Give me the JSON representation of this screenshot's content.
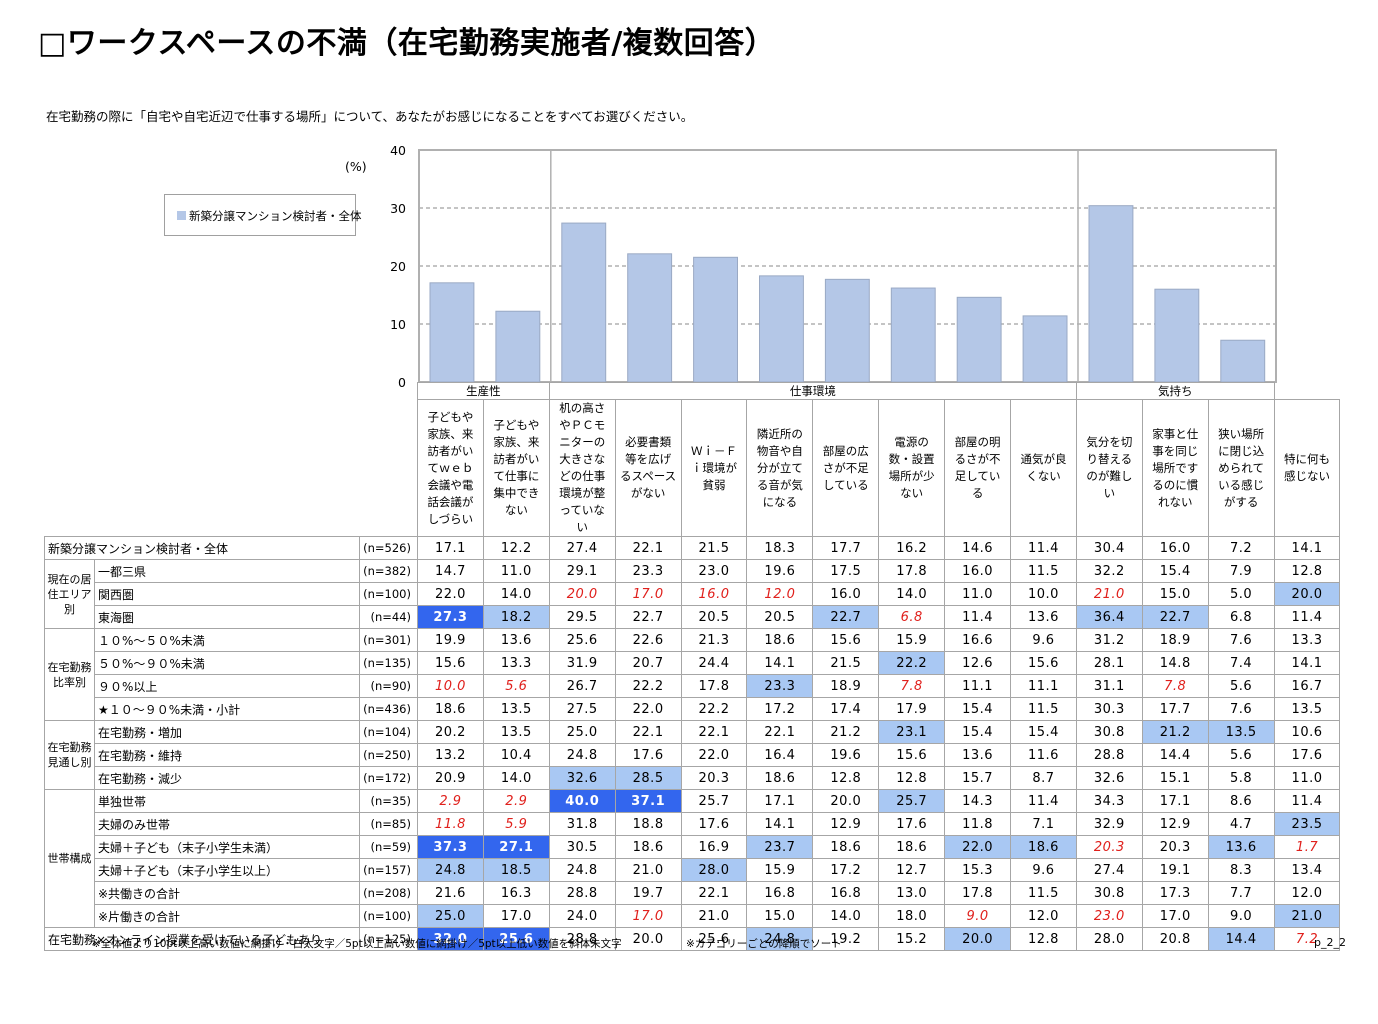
{
  "title": "□ワークスペースの不満（在宅勤務実施者/複数回答）",
  "question": "在宅勤務の際に「自宅や自宅近辺で仕事する場所」について、あなたがお感じになることをすべてお選びください。",
  "unit": "(%)",
  "legend": "新築分譲マンション検討者・全体",
  "chart_data": {
    "type": "bar",
    "ylim": [
      0,
      40
    ],
    "yticks": [
      "0",
      "10",
      "20",
      "30",
      "40"
    ],
    "grid": true,
    "legend_position": "left",
    "categories": [
      "子どもや家族、来訪者がいてｗｅｂ会議や電話会議がしづらい",
      "子どもや家族、来訪者がいて仕事に集中できない",
      "机の高さやＰＣモニターの大きさなどの仕事環境が整っていない",
      "必要書類等を広げるスペースがない",
      "Ｗｉ－Ｆｉ環境が貧弱",
      "隣近所の物音や自分が立てる音が気になる",
      "部屋の広さが不足している",
      "電源の数・設置場所が少ない",
      "部屋の明るさが不足している",
      "通気が良くない",
      "気分を切り替えるのが難しい",
      "家事と仕事を同じ場所でするのに慣れない",
      "狭い場所に閉じ込められている感じがする"
    ],
    "series": [
      {
        "name": "新築分譲マンション検討者・全体",
        "values": [
          17.1,
          12.2,
          27.4,
          22.1,
          21.5,
          18.3,
          17.7,
          16.2,
          14.6,
          11.4,
          30.4,
          16.0,
          7.2
        ],
        "color": "#b4c7e7"
      }
    ]
  },
  "category_groups": [
    "生産性",
    "仕事環境",
    "気持ち"
  ],
  "columns": [
    "子どもや家族、来訪者がいてｗｅｂ会議や電話会議がしづらい",
    "子どもや家族、来訪者がいて仕事に集中できない",
    "机の高さやＰＣモニターの大きさなどの仕事環境が整っていない",
    "必要書類等を広げるスペースがない",
    "Ｗｉ－Ｆｉ環境が貧弱",
    "隣近所の物音や自分が立てる音が気になる",
    "部屋の広さが不足している",
    "電源の数・設置場所が少ない",
    "部屋の明るさが不足している",
    "通気が良くない",
    "気分を切り替えるのが難しい",
    "家事と仕事を同じ場所でするのに慣れない",
    "狭い場所に閉じ込められている感じがする",
    "特に何も感じない"
  ],
  "colors": {
    "bar": "#b4c7e7",
    "highlight_strong": "#3366ee",
    "highlight_light": "#a9c8f3",
    "low_text": "#e0201c"
  },
  "rows": [
    {
      "group": "",
      "label": "新築分譲マンション検討者・全体",
      "n": "(n=526)",
      "values": [
        "17.1",
        "12.2",
        "27.4",
        "22.1",
        "21.5",
        "18.3",
        "17.7",
        "16.2",
        "14.6",
        "11.4",
        "30.4",
        "16.0",
        "7.2",
        "14.1"
      ],
      "styles": [
        "",
        "",
        "",
        "",
        "",
        "",
        "",
        "",
        "",
        "",
        "",
        "",
        "",
        ""
      ]
    },
    {
      "group": "現在の居住エリア別",
      "label": "一都三県",
      "n": "(n=382)",
      "values": [
        "14.7",
        "11.0",
        "29.1",
        "23.3",
        "23.0",
        "19.6",
        "17.5",
        "17.8",
        "16.0",
        "11.5",
        "32.2",
        "15.4",
        "7.9",
        "12.8"
      ],
      "styles": [
        "",
        "",
        "",
        "",
        "",
        "",
        "",
        "",
        "",
        "",
        "",
        "",
        "",
        ""
      ]
    },
    {
      "group": "",
      "label": "関西圏",
      "n": "(n=100)",
      "values": [
        "22.0",
        "14.0",
        "20.0",
        "17.0",
        "16.0",
        "12.0",
        "16.0",
        "14.0",
        "11.0",
        "10.0",
        "21.0",
        "15.0",
        "5.0",
        "20.0"
      ],
      "styles": [
        "",
        "",
        "low",
        "low",
        "low",
        "low",
        "",
        "",
        "",
        "",
        "low",
        "",
        "",
        "hl2"
      ]
    },
    {
      "group": "",
      "label": "東海圏",
      "n": "(n=44)",
      "values": [
        "27.3",
        "18.2",
        "29.5",
        "22.7",
        "20.5",
        "20.5",
        "22.7",
        "6.8",
        "11.4",
        "13.6",
        "36.4",
        "22.7",
        "6.8",
        "11.4"
      ],
      "styles": [
        "hl1",
        "hl2",
        "",
        "",
        "",
        "",
        "hl2",
        "low",
        "",
        "",
        "hl2",
        "hl2",
        "",
        ""
      ]
    },
    {
      "group": "在宅勤務比率別",
      "label": "１０%～５０%未満",
      "n": "(n=301)",
      "values": [
        "19.9",
        "13.6",
        "25.6",
        "22.6",
        "21.3",
        "18.6",
        "15.6",
        "15.9",
        "16.6",
        "9.6",
        "31.2",
        "18.9",
        "7.6",
        "13.3"
      ],
      "styles": [
        "",
        "",
        "",
        "",
        "",
        "",
        "",
        "",
        "",
        "",
        "",
        "",
        "",
        ""
      ]
    },
    {
      "group": "",
      "label": "５０%～９０%未満",
      "n": "(n=135)",
      "values": [
        "15.6",
        "13.3",
        "31.9",
        "20.7",
        "24.4",
        "14.1",
        "21.5",
        "22.2",
        "12.6",
        "15.6",
        "28.1",
        "14.8",
        "7.4",
        "14.1"
      ],
      "styles": [
        "",
        "",
        "",
        "",
        "",
        "",
        "",
        "hl2",
        "",
        "",
        "",
        "",
        "",
        ""
      ]
    },
    {
      "group": "",
      "label": "９０%以上",
      "n": "(n=90)",
      "values": [
        "10.0",
        "5.6",
        "26.7",
        "22.2",
        "17.8",
        "23.3",
        "18.9",
        "7.8",
        "11.1",
        "11.1",
        "31.1",
        "7.8",
        "5.6",
        "16.7"
      ],
      "styles": [
        "low",
        "low",
        "",
        "",
        "",
        "hl2",
        "",
        "low",
        "",
        "",
        "",
        "low",
        "",
        ""
      ]
    },
    {
      "group": "",
      "label": "★１０～９０%未満・小計",
      "n": "(n=436)",
      "values": [
        "18.6",
        "13.5",
        "27.5",
        "22.0",
        "22.2",
        "17.2",
        "17.4",
        "17.9",
        "15.4",
        "11.5",
        "30.3",
        "17.7",
        "7.6",
        "13.5"
      ],
      "styles": [
        "",
        "",
        "",
        "",
        "",
        "",
        "",
        "",
        "",
        "",
        "",
        "",
        "",
        ""
      ]
    },
    {
      "group": "在宅勤務見通し別",
      "label": "在宅勤務・増加",
      "n": "(n=104)",
      "values": [
        "20.2",
        "13.5",
        "25.0",
        "22.1",
        "22.1",
        "22.1",
        "21.2",
        "23.1",
        "15.4",
        "15.4",
        "30.8",
        "21.2",
        "13.5",
        "10.6"
      ],
      "styles": [
        "",
        "",
        "",
        "",
        "",
        "",
        "",
        "hl2",
        "",
        "",
        "",
        "hl2",
        "hl2",
        ""
      ]
    },
    {
      "group": "",
      "label": "在宅勤務・維持",
      "n": "(n=250)",
      "values": [
        "13.2",
        "10.4",
        "24.8",
        "17.6",
        "22.0",
        "16.4",
        "19.6",
        "15.6",
        "13.6",
        "11.6",
        "28.8",
        "14.4",
        "5.6",
        "17.6"
      ],
      "styles": [
        "",
        "",
        "",
        "",
        "",
        "",
        "",
        "",
        "",
        "",
        "",
        "",
        "",
        ""
      ]
    },
    {
      "group": "",
      "label": "在宅勤務・減少",
      "n": "(n=172)",
      "values": [
        "20.9",
        "14.0",
        "32.6",
        "28.5",
        "20.3",
        "18.6",
        "12.8",
        "12.8",
        "15.7",
        "8.7",
        "32.6",
        "15.1",
        "5.8",
        "11.0"
      ],
      "styles": [
        "",
        "",
        "hl2",
        "hl2",
        "",
        "",
        "",
        "",
        "",
        "",
        "",
        "",
        "",
        ""
      ]
    },
    {
      "group": "世帯構成",
      "label": "単独世帯",
      "n": "(n=35)",
      "values": [
        "2.9",
        "2.9",
        "40.0",
        "37.1",
        "25.7",
        "17.1",
        "20.0",
        "25.7",
        "14.3",
        "11.4",
        "34.3",
        "17.1",
        "8.6",
        "11.4"
      ],
      "styles": [
        "low",
        "low",
        "hl1",
        "hl1",
        "",
        "",
        "",
        "hl2",
        "",
        "",
        "",
        "",
        "",
        ""
      ]
    },
    {
      "group": "",
      "label": "夫婦のみ世帯",
      "n": "(n=85)",
      "values": [
        "11.8",
        "5.9",
        "31.8",
        "18.8",
        "17.6",
        "14.1",
        "12.9",
        "17.6",
        "11.8",
        "7.1",
        "32.9",
        "12.9",
        "4.7",
        "23.5"
      ],
      "styles": [
        "low",
        "low",
        "",
        "",
        "",
        "",
        "",
        "",
        "",
        "",
        "",
        "",
        "",
        "hl2"
      ]
    },
    {
      "group": "",
      "label": "夫婦＋子ども（末子小学生未満）",
      "n": "(n=59)",
      "values": [
        "37.3",
        "27.1",
        "30.5",
        "18.6",
        "16.9",
        "23.7",
        "18.6",
        "18.6",
        "22.0",
        "18.6",
        "20.3",
        "20.3",
        "13.6",
        "1.7"
      ],
      "styles": [
        "hl1",
        "hl1",
        "",
        "",
        "",
        "hl2",
        "",
        "",
        "hl2",
        "hl2",
        "low",
        "",
        "hl2",
        "low"
      ]
    },
    {
      "group": "",
      "label": "夫婦＋子ども（末子小学生以上）",
      "n": "(n=157)",
      "values": [
        "24.8",
        "18.5",
        "24.8",
        "21.0",
        "28.0",
        "15.9",
        "17.2",
        "12.7",
        "15.3",
        "9.6",
        "27.4",
        "19.1",
        "8.3",
        "13.4"
      ],
      "styles": [
        "hl2",
        "hl2",
        "",
        "",
        "hl2",
        "",
        "",
        "",
        "",
        "",
        "",
        "",
        "",
        ""
      ]
    },
    {
      "group": "",
      "label": "※共働きの合計",
      "n": "(n=208)",
      "values": [
        "21.6",
        "16.3",
        "28.8",
        "19.7",
        "22.1",
        "16.8",
        "16.8",
        "13.0",
        "17.8",
        "11.5",
        "30.8",
        "17.3",
        "7.7",
        "12.0"
      ],
      "styles": [
        "",
        "",
        "",
        "",
        "",
        "",
        "",
        "",
        "",
        "",
        "",
        "",
        "",
        ""
      ]
    },
    {
      "group": "",
      "label": "※片働きの合計",
      "n": "(n=100)",
      "values": [
        "25.0",
        "17.0",
        "24.0",
        "17.0",
        "21.0",
        "15.0",
        "14.0",
        "18.0",
        "9.0",
        "12.0",
        "23.0",
        "17.0",
        "9.0",
        "21.0"
      ],
      "styles": [
        "hl2",
        "",
        "",
        "low",
        "",
        "",
        "",
        "",
        "low",
        "",
        "low",
        "",
        "",
        "hl2"
      ]
    },
    {
      "group": "",
      "label": "在宅勤務×オンライン授業を受けている子どもあり",
      "n": "(n=125)",
      "values": [
        "32.0",
        "25.6",
        "28.8",
        "20.0",
        "25.6",
        "24.8",
        "19.2",
        "15.2",
        "20.0",
        "12.8",
        "28.0",
        "20.8",
        "14.4",
        "7.2"
      ],
      "styles": [
        "hl1",
        "hl1",
        "",
        "",
        "",
        "hl2",
        "",
        "",
        "hl2",
        "",
        "",
        "",
        "hl2",
        "low"
      ]
    }
  ],
  "footnote_left": "※全体値より10pt以上高い数値に網掛け・白太文字／5pt以上高い数値に網掛け／5pt以上低い数値を斜体朱文字",
  "footnote_right": "※カテゴリーごとの降順でソート",
  "page_number": "p_2_2"
}
